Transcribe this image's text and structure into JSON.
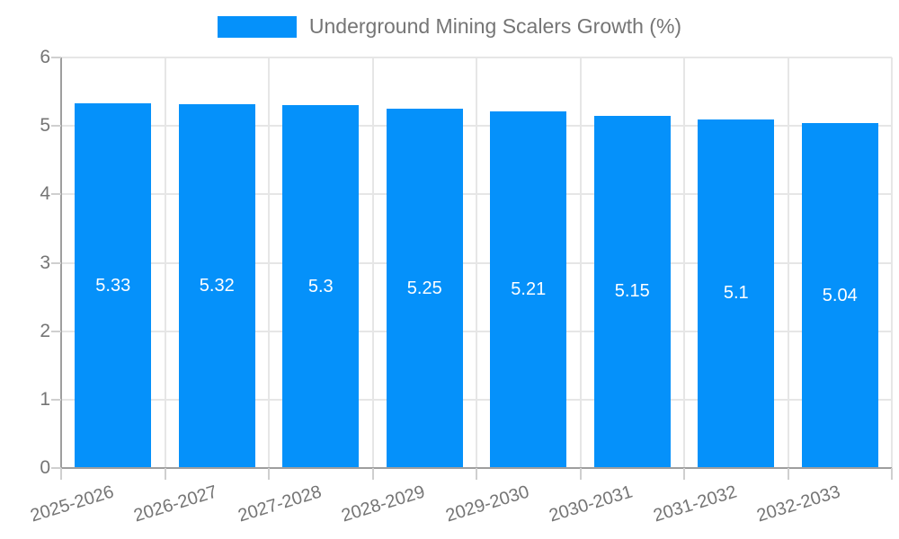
{
  "legend": {
    "label": "Underground Mining Scalers Growth (%)"
  },
  "colors": {
    "bar": "#0591FA",
    "grid": "#e6e6e6",
    "axis_line": "#9e9e9e",
    "tick_mark": "#cfcfcf",
    "tick_label": "#757575",
    "value_label": "#ffffff",
    "background": "#ffffff"
  },
  "chart_data": {
    "type": "bar",
    "title": "Underground Mining Scalers Growth (%)",
    "categories": [
      "2025-2026",
      "2026-2027",
      "2027-2028",
      "2028-2029",
      "2029-2030",
      "2030-2031",
      "2031-2032",
      "2032-2033"
    ],
    "values": [
      5.33,
      5.32,
      5.3,
      5.25,
      5.21,
      5.15,
      5.1,
      5.04
    ],
    "value_labels": [
      "5.33",
      "5.32",
      "5.3",
      "5.25",
      "5.21",
      "5.15",
      "5.1",
      "5.04"
    ],
    "xlabel": "",
    "ylabel": "",
    "ylim": [
      0,
      6
    ],
    "yticks": [
      "0",
      "1",
      "2",
      "3",
      "4",
      "5",
      "6"
    ],
    "grid": true,
    "legend_position": "top-center",
    "bar_color": "#0591FA"
  }
}
